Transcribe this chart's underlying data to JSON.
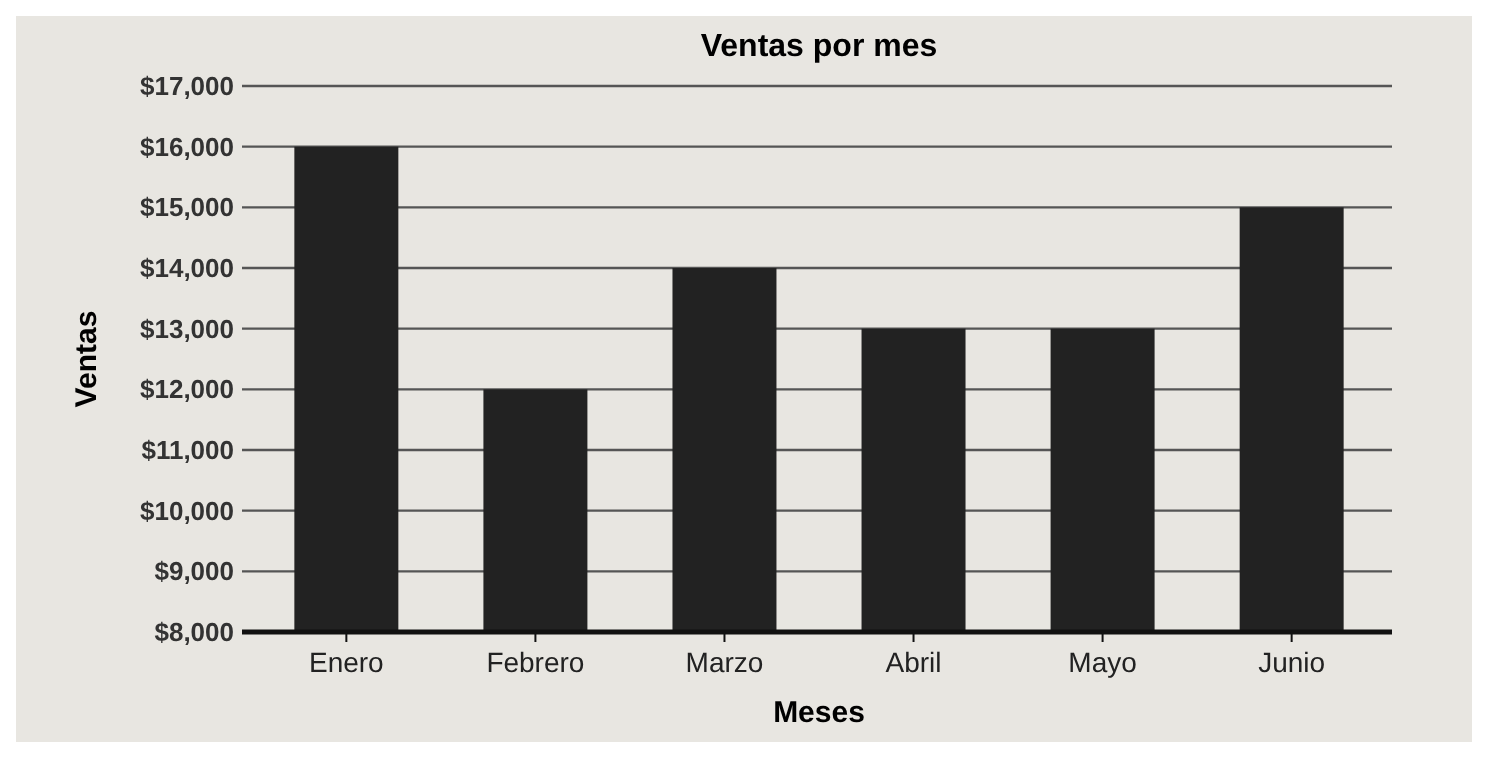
{
  "chart_data": {
    "type": "bar",
    "title": "Ventas por mes",
    "xlabel": "Meses",
    "ylabel": "Ventas",
    "categories": [
      "Enero",
      "Febrero",
      "Marzo",
      "Abril",
      "Mayo",
      "Junio"
    ],
    "values": [
      16000,
      12000,
      14000,
      13000,
      13000,
      15000
    ],
    "color": "#222222",
    "ylim": [
      8000,
      17000
    ],
    "yticks": [
      {
        "value": 8000,
        "label": "$8,000"
      },
      {
        "value": 9000,
        "label": "$9,000"
      },
      {
        "value": 10000,
        "label": "$10,000"
      },
      {
        "value": 11000,
        "label": "$11,000"
      },
      {
        "value": 12000,
        "label": "$12,000"
      },
      {
        "value": 13000,
        "label": "$13,000"
      },
      {
        "value": 14000,
        "label": "$14,000"
      },
      {
        "value": 15000,
        "label": "$15,000"
      },
      {
        "value": 16000,
        "label": "$16,000"
      },
      {
        "value": 17000,
        "label": "$17,000"
      }
    ],
    "grid": "y"
  }
}
